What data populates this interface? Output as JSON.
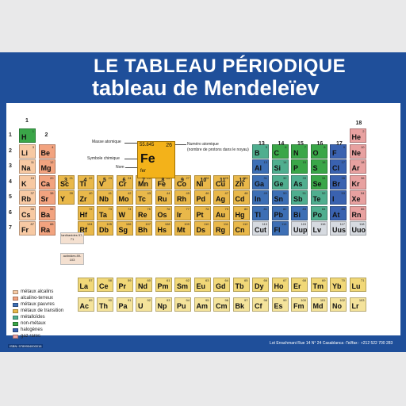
{
  "title": "LE TABLEAU PÉRIODIQUE",
  "subtitle": "tableau de Mendeleïev",
  "footer": "Lot Errachmani Rue 14 N° 24 Casablanca -Tel/fax : +212 522 700 283",
  "isbn": "ISBN: 9789954000016",
  "colors": {
    "alkali": "#f7c9a3",
    "alkaline": "#f2a37f",
    "poor": "#3d6fb5",
    "transition": "#e9b84a",
    "metalloid": "#4fae8f",
    "nonmetal": "#3aa648",
    "halogen": "#3a62b0",
    "noble": "#e8a1a0",
    "lanthanide": "#f1d878",
    "actinide": "#f4e39b",
    "unknown": "#d6dae0"
  },
  "key": {
    "mass": "55.845",
    "number": "26",
    "symbol": "Fe",
    "name": "fer",
    "label_mass": "Masse atomique",
    "label_symbol": "Symbole chimique",
    "label_name": "Nom",
    "label_number": "Numéro atomique",
    "label_number2": "(nombre de protons dans le noyau)"
  },
  "group_labels": [
    "1",
    "2",
    "3",
    "4",
    "5",
    "6",
    "7",
    "8",
    "9",
    "10",
    "11",
    "12",
    "13",
    "14",
    "15",
    "16",
    "17",
    "18"
  ],
  "period_labels": [
    "1",
    "2",
    "3",
    "4",
    "5",
    "6",
    "7"
  ],
  "lanthanide_ref": "lanthanides 57-71",
  "actinide_ref": "actinides 89-103",
  "legend": [
    {
      "label": "métaux alcalins",
      "color": "#f7c9a3"
    },
    {
      "label": "alcalino-terreux",
      "color": "#f2a37f"
    },
    {
      "label": "métaux pauvres",
      "color": "#3d6fb5"
    },
    {
      "label": "métaux de transition",
      "color": "#e9b84a"
    },
    {
      "label": "métalloïdes",
      "color": "#4fae8f"
    },
    {
      "label": "non-métaux",
      "color": "#3aa648"
    },
    {
      "label": "halogènes",
      "color": "#3a62b0"
    },
    {
      "label": "gaz rares",
      "color": "#e8a1a0"
    }
  ],
  "elements": [
    [
      "H",
      1,
      1,
      1,
      "nonmetal"
    ],
    [
      "He",
      2,
      18,
      1,
      "noble"
    ],
    [
      "Li",
      3,
      1,
      2,
      "alkali"
    ],
    [
      "Be",
      4,
      2,
      2,
      "alkaline"
    ],
    [
      "B",
      5,
      13,
      2,
      "metalloid"
    ],
    [
      "C",
      6,
      14,
      2,
      "nonmetal"
    ],
    [
      "N",
      7,
      15,
      2,
      "nonmetal"
    ],
    [
      "O",
      8,
      16,
      2,
      "nonmetal"
    ],
    [
      "F",
      9,
      17,
      2,
      "halogen"
    ],
    [
      "Ne",
      10,
      18,
      2,
      "noble"
    ],
    [
      "Na",
      11,
      1,
      3,
      "alkali"
    ],
    [
      "Mg",
      12,
      2,
      3,
      "alkaline"
    ],
    [
      "Al",
      13,
      13,
      3,
      "poor"
    ],
    [
      "Si",
      14,
      14,
      3,
      "metalloid"
    ],
    [
      "P",
      15,
      15,
      3,
      "nonmetal"
    ],
    [
      "S",
      16,
      16,
      3,
      "nonmetal"
    ],
    [
      "Cl",
      17,
      17,
      3,
      "halogen"
    ],
    [
      "Ar",
      18,
      18,
      3,
      "noble"
    ],
    [
      "K",
      19,
      1,
      4,
      "alkali"
    ],
    [
      "Ca",
      20,
      2,
      4,
      "alkaline"
    ],
    [
      "Sc",
      21,
      3,
      4,
      "transition"
    ],
    [
      "Ti",
      22,
      4,
      4,
      "transition"
    ],
    [
      "V",
      23,
      5,
      4,
      "transition"
    ],
    [
      "Cr",
      24,
      6,
      4,
      "transition"
    ],
    [
      "Mn",
      25,
      7,
      4,
      "transition"
    ],
    [
      "Fe",
      26,
      8,
      4,
      "transition"
    ],
    [
      "Co",
      27,
      9,
      4,
      "transition"
    ],
    [
      "Ni",
      28,
      10,
      4,
      "transition"
    ],
    [
      "Cu",
      29,
      11,
      4,
      "transition"
    ],
    [
      "Zn",
      30,
      12,
      4,
      "transition"
    ],
    [
      "Ga",
      31,
      13,
      4,
      "poor"
    ],
    [
      "Ge",
      32,
      14,
      4,
      "metalloid"
    ],
    [
      "As",
      33,
      15,
      4,
      "metalloid"
    ],
    [
      "Se",
      34,
      16,
      4,
      "nonmetal"
    ],
    [
      "Br",
      35,
      17,
      4,
      "halogen"
    ],
    [
      "Kr",
      36,
      18,
      4,
      "noble"
    ],
    [
      "Rb",
      37,
      1,
      5,
      "alkali"
    ],
    [
      "Sr",
      38,
      2,
      5,
      "alkaline"
    ],
    [
      "Y",
      39,
      3,
      5,
      "transition"
    ],
    [
      "Zr",
      40,
      4,
      5,
      "transition"
    ],
    [
      "Nb",
      41,
      5,
      5,
      "transition"
    ],
    [
      "Mo",
      42,
      6,
      5,
      "transition"
    ],
    [
      "Tc",
      43,
      7,
      5,
      "transition"
    ],
    [
      "Ru",
      44,
      8,
      5,
      "transition"
    ],
    [
      "Rh",
      45,
      9,
      5,
      "transition"
    ],
    [
      "Pd",
      46,
      10,
      5,
      "transition"
    ],
    [
      "Ag",
      47,
      11,
      5,
      "transition"
    ],
    [
      "Cd",
      48,
      12,
      5,
      "transition"
    ],
    [
      "In",
      49,
      13,
      5,
      "poor"
    ],
    [
      "Sn",
      50,
      14,
      5,
      "poor"
    ],
    [
      "Sb",
      51,
      15,
      5,
      "metalloid"
    ],
    [
      "Te",
      52,
      16,
      5,
      "metalloid"
    ],
    [
      "I",
      53,
      17,
      5,
      "halogen"
    ],
    [
      "Xe",
      54,
      18,
      5,
      "noble"
    ],
    [
      "Cs",
      55,
      1,
      6,
      "alkali"
    ],
    [
      "Ba",
      56,
      2,
      6,
      "alkaline"
    ],
    [
      "Hf",
      72,
      4,
      6,
      "transition"
    ],
    [
      "Ta",
      73,
      5,
      6,
      "transition"
    ],
    [
      "W",
      74,
      6,
      6,
      "transition"
    ],
    [
      "Re",
      75,
      7,
      6,
      "transition"
    ],
    [
      "Os",
      76,
      8,
      6,
      "transition"
    ],
    [
      "Ir",
      77,
      9,
      6,
      "transition"
    ],
    [
      "Pt",
      78,
      10,
      6,
      "transition"
    ],
    [
      "Au",
      79,
      11,
      6,
      "transition"
    ],
    [
      "Hg",
      80,
      12,
      6,
      "transition"
    ],
    [
      "Tl",
      81,
      13,
      6,
      "poor"
    ],
    [
      "Pb",
      82,
      14,
      6,
      "poor"
    ],
    [
      "Bi",
      83,
      15,
      6,
      "poor"
    ],
    [
      "Po",
      84,
      16,
      6,
      "metalloid"
    ],
    [
      "At",
      85,
      17,
      6,
      "halogen"
    ],
    [
      "Rn",
      86,
      18,
      6,
      "noble"
    ],
    [
      "Fr",
      87,
      1,
      7,
      "alkali"
    ],
    [
      "Ra",
      88,
      2,
      7,
      "alkaline"
    ],
    [
      "Rf",
      104,
      4,
      7,
      "transition"
    ],
    [
      "Db",
      105,
      5,
      7,
      "transition"
    ],
    [
      "Sg",
      106,
      6,
      7,
      "transition"
    ],
    [
      "Bh",
      107,
      7,
      7,
      "transition"
    ],
    [
      "Hs",
      108,
      8,
      7,
      "transition"
    ],
    [
      "Mt",
      109,
      9,
      7,
      "transition"
    ],
    [
      "Ds",
      110,
      10,
      7,
      "transition"
    ],
    [
      "Rg",
      111,
      11,
      7,
      "transition"
    ],
    [
      "Cn",
      112,
      12,
      7,
      "transition"
    ],
    [
      "Cut",
      113,
      13,
      7,
      "unknown"
    ],
    [
      "Fl",
      114,
      14,
      7,
      "poor"
    ],
    [
      "Uup",
      115,
      15,
      7,
      "unknown"
    ],
    [
      "Lv",
      116,
      16,
      7,
      "unknown"
    ],
    [
      "Uus",
      117,
      17,
      7,
      "unknown"
    ],
    [
      "Uuo",
      118,
      18,
      7,
      "unknown"
    ],
    [
      "La",
      57,
      4,
      9,
      "lanthanide"
    ],
    [
      "Ce",
      58,
      5,
      9,
      "lanthanide"
    ],
    [
      "Pr",
      59,
      6,
      9,
      "lanthanide"
    ],
    [
      "Nd",
      60,
      7,
      9,
      "lanthanide"
    ],
    [
      "Pm",
      61,
      8,
      9,
      "lanthanide"
    ],
    [
      "Sm",
      62,
      9,
      9,
      "lanthanide"
    ],
    [
      "Eu",
      63,
      10,
      9,
      "lanthanide"
    ],
    [
      "Gd",
      64,
      11,
      9,
      "lanthanide"
    ],
    [
      "Tb",
      65,
      12,
      9,
      "lanthanide"
    ],
    [
      "Dy",
      66,
      13,
      9,
      "lanthanide"
    ],
    [
      "Ho",
      67,
      14,
      9,
      "lanthanide"
    ],
    [
      "Er",
      68,
      15,
      9,
      "lanthanide"
    ],
    [
      "Tm",
      69,
      16,
      9,
      "lanthanide"
    ],
    [
      "Yb",
      70,
      17,
      9,
      "lanthanide"
    ],
    [
      "Lu",
      71,
      18,
      9,
      "lanthanide"
    ],
    [
      "Ac",
      89,
      4,
      10,
      "actinide"
    ],
    [
      "Th",
      90,
      5,
      10,
      "actinide"
    ],
    [
      "Pa",
      91,
      6,
      10,
      "actinide"
    ],
    [
      "U",
      92,
      7,
      10,
      "actinide"
    ],
    [
      "Np",
      93,
      8,
      10,
      "actinide"
    ],
    [
      "Pu",
      94,
      9,
      10,
      "actinide"
    ],
    [
      "Am",
      95,
      10,
      10,
      "actinide"
    ],
    [
      "Cm",
      96,
      11,
      10,
      "actinide"
    ],
    [
      "Bk",
      97,
      12,
      10,
      "actinide"
    ],
    [
      "Cf",
      98,
      13,
      10,
      "actinide"
    ],
    [
      "Es",
      99,
      14,
      10,
      "actinide"
    ],
    [
      "Fm",
      100,
      15,
      10,
      "actinide"
    ],
    [
      "Md",
      101,
      16,
      10,
      "actinide"
    ],
    [
      "No",
      102,
      17,
      10,
      "actinide"
    ],
    [
      "Lr",
      103,
      18,
      10,
      "actinide"
    ]
  ]
}
